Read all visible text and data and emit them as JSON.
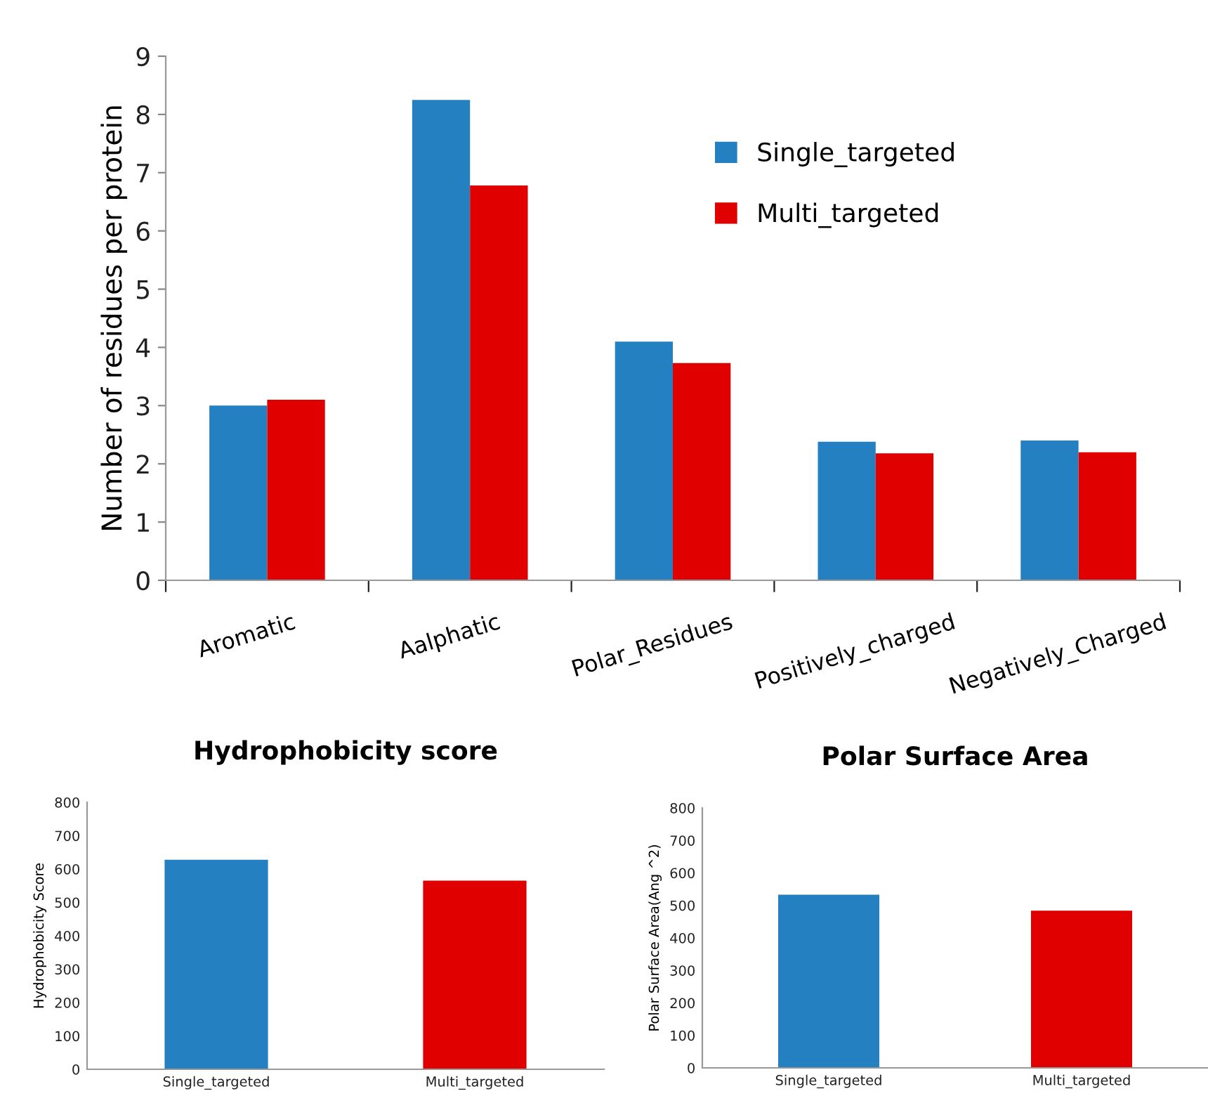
{
  "chart_data": [
    {
      "type": "bar",
      "ylabel": "Number of residues per protein",
      "categories": [
        "Aromatic",
        "Aalphatic",
        "Polar_Residues",
        "Positively_charged",
        "Negatively_Charged"
      ],
      "series": [
        {
          "name": "Single_targeted",
          "color": "#2580c2",
          "values": [
            3.0,
            8.25,
            4.1,
            2.38,
            2.4
          ]
        },
        {
          "name": "Multi_targeted",
          "color": "#e00000",
          "values": [
            3.1,
            6.78,
            3.73,
            2.18,
            2.2
          ]
        }
      ],
      "ylim": [
        0,
        9
      ],
      "yticks": [
        0,
        1,
        2,
        3,
        4,
        5,
        6,
        7,
        8,
        9
      ],
      "legend": "top right",
      "grid": false
    },
    {
      "type": "bar",
      "title": "Hydrophobicity score",
      "ylabel": "Hydrophobicity Score",
      "categories": [
        "Single_targeted",
        "Multi_targeted"
      ],
      "values": [
        628,
        565
      ],
      "colors": [
        "#2580c2",
        "#e00000"
      ],
      "ylim": [
        0,
        800
      ],
      "yticks": [
        0,
        100,
        200,
        300,
        400,
        500,
        600,
        700,
        800
      ],
      "grid": false
    },
    {
      "type": "bar",
      "title": "Polar Surface Area",
      "ylabel": "Polar Surface Area(Ang ^2)",
      "categories": [
        "Single_targeted",
        "Multi_targeted"
      ],
      "values": [
        533,
        484
      ],
      "colors": [
        "#2580c2",
        "#e00000"
      ],
      "ylim": [
        0,
        800
      ],
      "yticks": [
        0,
        100,
        200,
        300,
        400,
        500,
        600,
        700,
        800
      ],
      "grid": false
    }
  ]
}
